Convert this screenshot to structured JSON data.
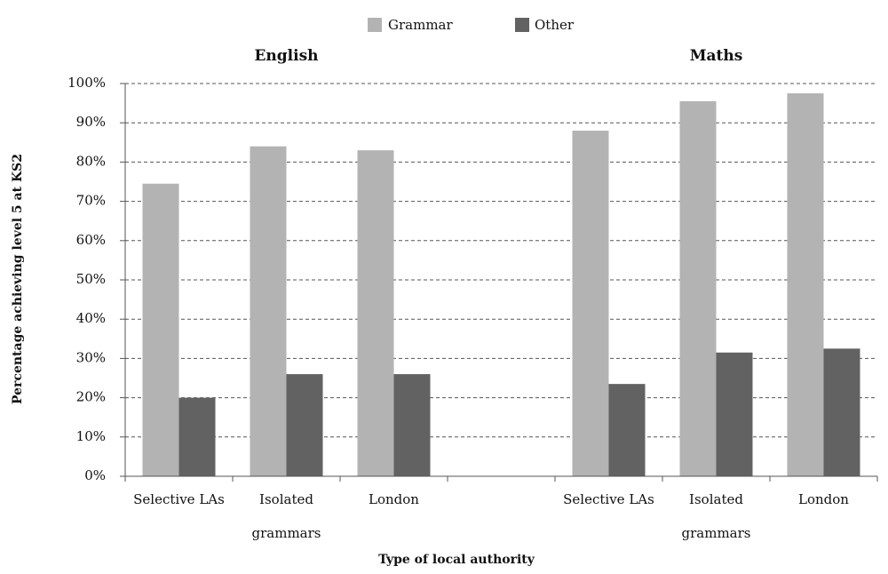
{
  "chart_data": {
    "type": "bar",
    "title": "",
    "xlabel": "Type of local authority",
    "ylabel": "Percentage achieving level 5 at KS2",
    "ylim": [
      0,
      100
    ],
    "yticks": [
      "0%",
      "10%",
      "20%",
      "30%",
      "40%",
      "50%",
      "60%",
      "70%",
      "80%",
      "90%",
      "100%"
    ],
    "grid": true,
    "legend_position": "top-center",
    "colors": {
      "Grammar": "#b3b3b3",
      "Other": "#626262"
    },
    "groups": [
      {
        "name": "English",
        "categories": [
          [
            "Selective LAs"
          ],
          [
            "Isolated",
            "grammars"
          ],
          [
            "London"
          ]
        ],
        "series": [
          {
            "name": "Grammar",
            "values": [
              74.5,
              84,
              83
            ]
          },
          {
            "name": "Other",
            "values": [
              20,
              26,
              26
            ]
          }
        ]
      },
      {
        "name": "Maths",
        "categories": [
          [
            "Selective LAs"
          ],
          [
            "Isolated",
            "grammars"
          ],
          [
            "London"
          ]
        ],
        "series": [
          {
            "name": "Grammar",
            "values": [
              88,
              95.5,
              97.5
            ]
          },
          {
            "name": "Other",
            "values": [
              23.5,
              31.5,
              32.5
            ]
          }
        ]
      }
    ]
  }
}
